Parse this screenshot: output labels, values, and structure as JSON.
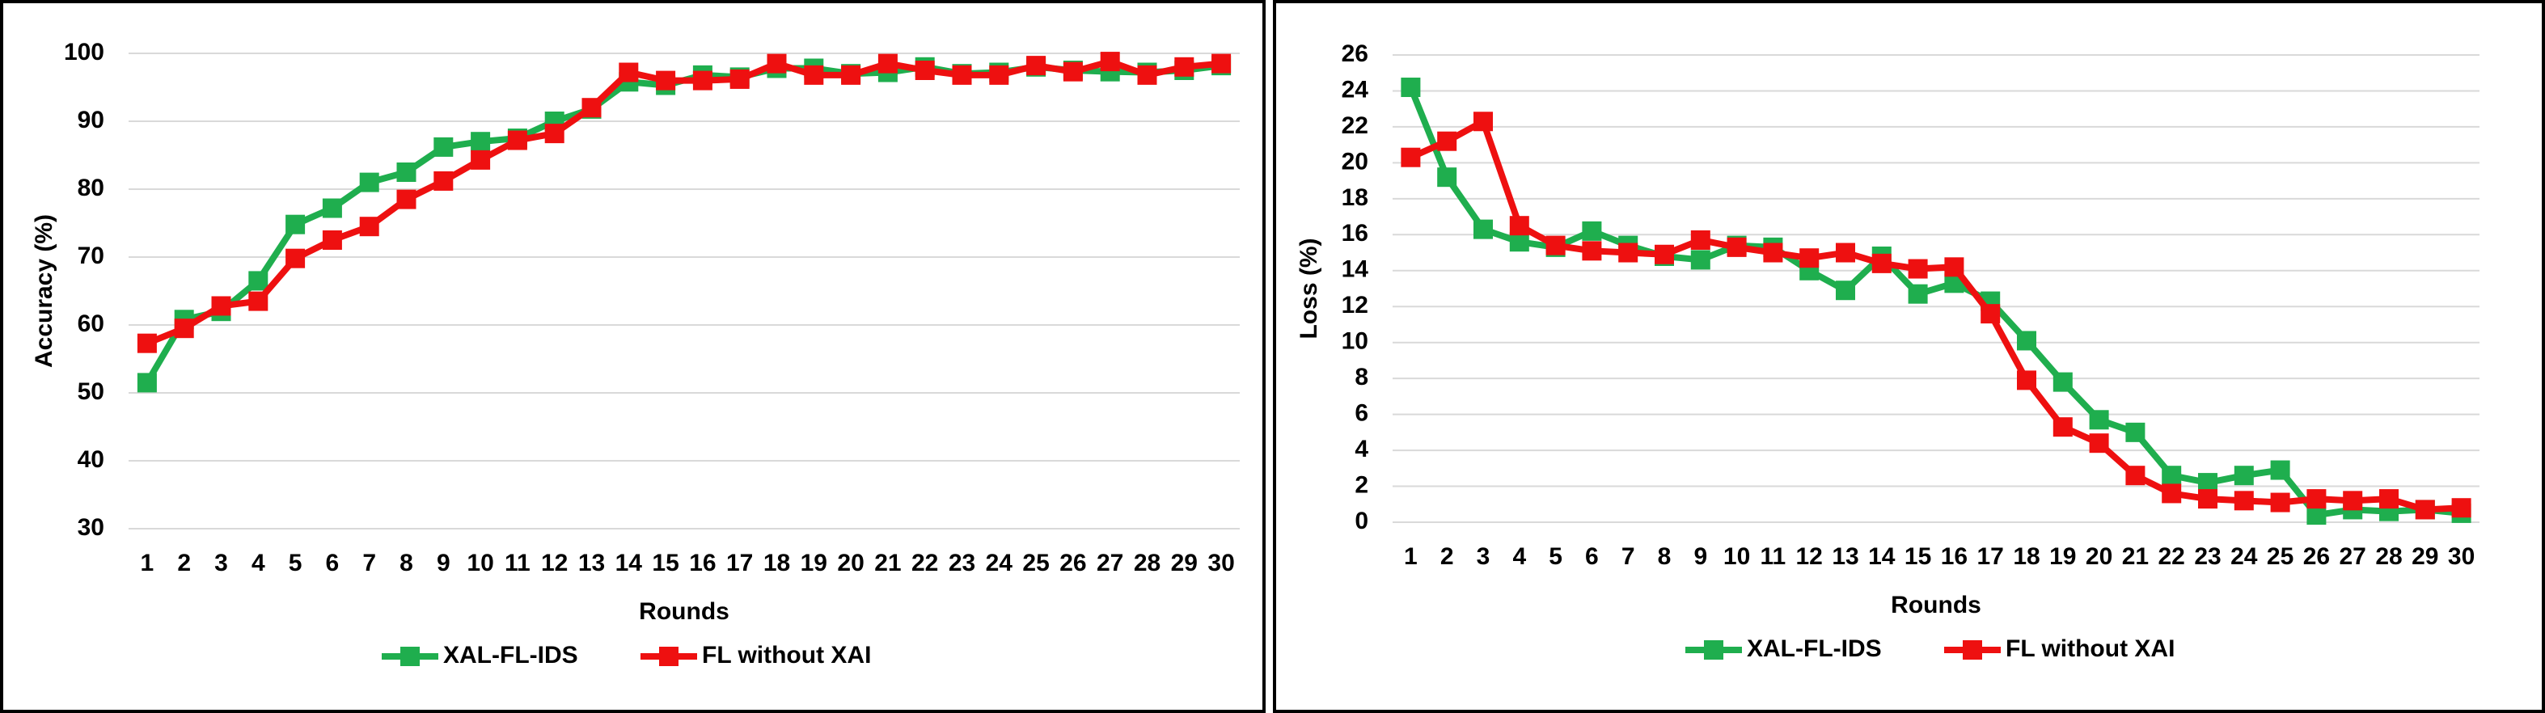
{
  "chart_data": [
    {
      "type": "line",
      "x_label": "Rounds",
      "y_label": "Accuracy (%)",
      "categories": [
        1,
        2,
        3,
        4,
        5,
        6,
        7,
        8,
        9,
        10,
        11,
        12,
        13,
        14,
        15,
        16,
        17,
        18,
        19,
        20,
        21,
        22,
        23,
        24,
        25,
        26,
        27,
        28,
        29,
        30
      ],
      "ylim": [
        30,
        100
      ],
      "yticks": [
        30,
        40,
        50,
        60,
        70,
        80,
        90,
        100
      ],
      "grid": true,
      "series": [
        {
          "name": "XAL-FL-IDS",
          "color": "#1fae4e",
          "values": [
            51.5,
            60.8,
            62,
            66.5,
            74.8,
            77.2,
            81,
            82.5,
            86.2,
            87,
            87.5,
            90,
            91.8,
            95.8,
            95.3,
            96.8,
            96.5,
            97.8,
            97.8,
            97,
            97.2,
            98,
            97,
            97.2,
            98,
            97.5,
            97.3,
            97.2,
            97.5,
            98.2
          ]
        },
        {
          "name": "FL without XAI",
          "color": "#ee1010",
          "values": [
            57.3,
            59.5,
            62.8,
            63.5,
            69.8,
            72.5,
            74.5,
            78.5,
            81.2,
            84.3,
            87.2,
            88.2,
            92,
            97.2,
            96,
            96,
            96.2,
            98.5,
            96.8,
            96.8,
            98.5,
            97.5,
            96.8,
            96.8,
            98.2,
            97.3,
            98.8,
            96.8,
            98,
            98.5
          ]
        }
      ]
    },
    {
      "type": "line",
      "x_label": "Rounds",
      "y_label": "Loss (%)",
      "categories": [
        1,
        2,
        3,
        4,
        5,
        6,
        7,
        8,
        9,
        10,
        11,
        12,
        13,
        14,
        15,
        16,
        17,
        18,
        19,
        20,
        21,
        22,
        23,
        24,
        25,
        26,
        27,
        28,
        29,
        30
      ],
      "ylim": [
        0,
        26
      ],
      "yticks": [
        0,
        2,
        4,
        6,
        8,
        10,
        12,
        14,
        16,
        18,
        20,
        22,
        24,
        26
      ],
      "grid": true,
      "series": [
        {
          "name": "XAL-FL-IDS",
          "color": "#1fae4e",
          "values": [
            24.2,
            19.2,
            16.3,
            15.6,
            15.3,
            16.2,
            15.4,
            14.8,
            14.6,
            15.4,
            15.3,
            14.0,
            12.9,
            14.8,
            12.7,
            13.3,
            12.3,
            10.1,
            7.8,
            5.7,
            5.0,
            2.6,
            2.2,
            2.6,
            2.9,
            0.4,
            0.7,
            0.6,
            0.7,
            0.5
          ]
        },
        {
          "name": "FL without XAI",
          "color": "#ee1010",
          "values": [
            20.3,
            21.2,
            22.3,
            16.5,
            15.4,
            15.1,
            15.0,
            14.9,
            15.7,
            15.3,
            15.0,
            14.7,
            15.0,
            14.4,
            14.1,
            14.2,
            11.6,
            7.9,
            5.3,
            4.4,
            2.6,
            1.6,
            1.3,
            1.2,
            1.1,
            1.3,
            1.2,
            1.3,
            0.7,
            0.8
          ]
        }
      ]
    }
  ]
}
